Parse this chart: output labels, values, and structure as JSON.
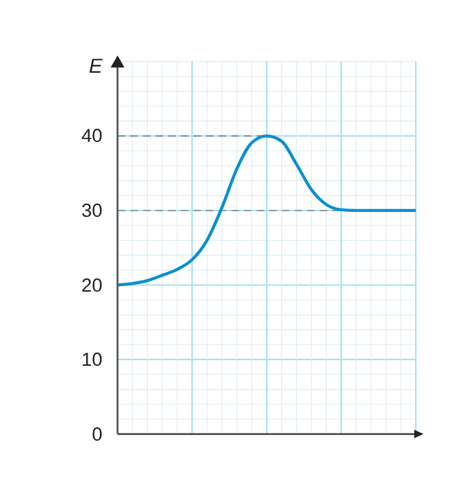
{
  "chart_data": {
    "type": "line",
    "ylabel": "E",
    "categories": [
      null,
      null,
      null,
      null,
      null,
      null,
      null,
      null,
      null,
      null,
      null,
      null,
      null,
      null,
      null,
      null,
      null,
      null,
      null,
      null,
      null
    ],
    "series": [
      {
        "color": "#0a8fd0",
        "values": [
          20,
          20.2,
          20.6,
          21.3,
          22.1,
          23.4,
          26.0,
          30.4,
          35.6,
          39.1,
          40,
          39.3,
          36.2,
          32.8,
          30.8,
          30.1,
          30,
          30,
          30,
          30,
          30
        ]
      }
    ],
    "ylim": [
      0,
      50
    ],
    "yticks": [
      0,
      10,
      20,
      30,
      40
    ],
    "grid": true,
    "tick_labels": "y",
    "marker": "none",
    "line_style": "solid",
    "ref_lines": [
      {
        "axis": "y",
        "value": 40,
        "color": "#8a9aa4",
        "line_style": "dashed"
      },
      {
        "axis": "y",
        "value": 30,
        "color": "#8a9aa4",
        "line_style": "dashed"
      }
    ]
  }
}
